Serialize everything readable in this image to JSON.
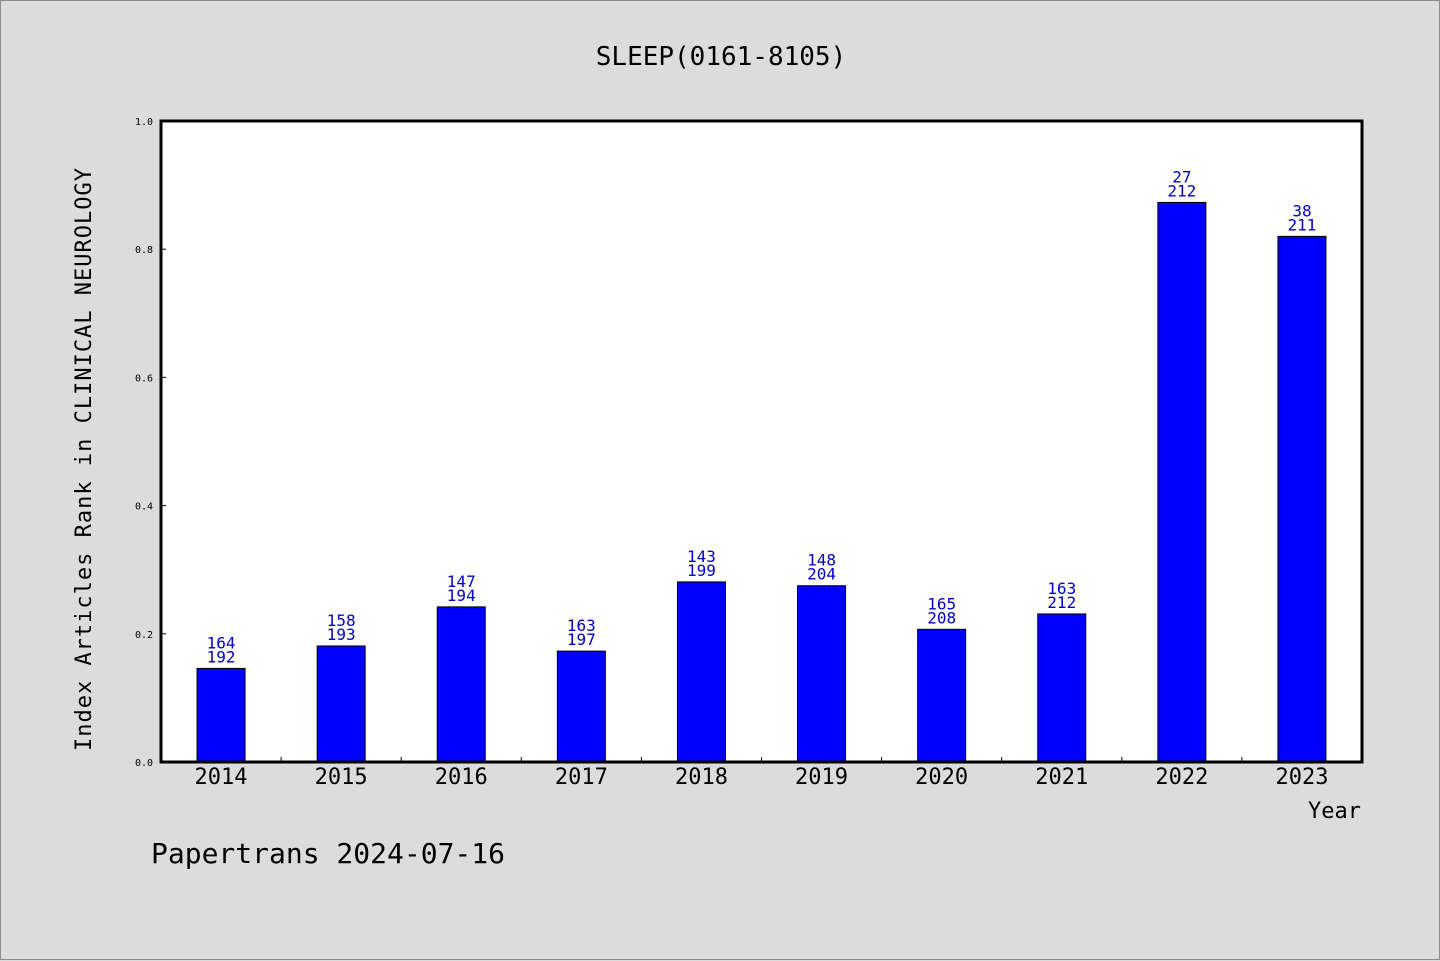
{
  "chart_data": {
    "type": "bar",
    "title": "SLEEP(0161-8105)",
    "xlabel": "Year",
    "ylabel": "Index Articles Rank in CLINICAL NEUROLOGY",
    "categories": [
      "2014",
      "2015",
      "2016",
      "2017",
      "2018",
      "2019",
      "2020",
      "2021",
      "2022",
      "2023"
    ],
    "values": [
      0.146,
      0.181,
      0.242,
      0.173,
      0.281,
      0.275,
      0.207,
      0.231,
      0.873,
      0.82
    ],
    "labels_top": [
      "164",
      "158",
      "147",
      "163",
      "143",
      "148",
      "165",
      "163",
      "27",
      "38"
    ],
    "labels_bottom": [
      "192",
      "193",
      "194",
      "197",
      "199",
      "204",
      "208",
      "212",
      "212",
      "211"
    ],
    "ylim": [
      0,
      1.0
    ],
    "yticks": [
      "0.0",
      "0.2",
      "0.4",
      "0.6",
      "0.8",
      "1.0"
    ],
    "grid": false,
    "bar_color": "#0000ff",
    "label_color": "#0000cc"
  },
  "footer": "Papertrans 2024-07-16"
}
